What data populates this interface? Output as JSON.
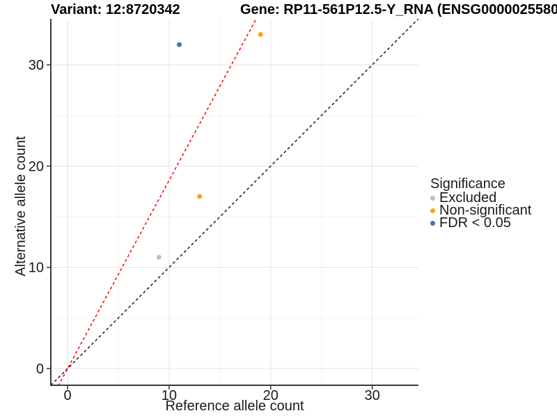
{
  "figure": {
    "variant_title": "Variant: 12:8720342",
    "gene_title": "Gene: RP11-561P12.5-Y_RNA (ENSG0000025580"
  },
  "legend": {
    "title": "Significance",
    "position": "right",
    "items": [
      {
        "label": "Excluded",
        "color": "#BEBEBE"
      },
      {
        "label": "Non-significant",
        "color": "#FCA01E"
      },
      {
        "label": "FDR < 0.05",
        "color": "#4477AA"
      }
    ]
  },
  "chart_data": {
    "type": "scatter",
    "title_left": "Variant: 12:8720342",
    "title_right": "Gene: RP11-561P12.5-Y_RNA (ENSG0000025580",
    "xlabel": "Reference allele count",
    "ylabel": "Alternative allele count",
    "xlim": [
      -1.65,
      34.55
    ],
    "ylim": [
      -1.65,
      34.55
    ],
    "x_major_ticks": [
      0,
      10,
      20,
      30
    ],
    "y_major_ticks": [
      0,
      10,
      20,
      30
    ],
    "x_minor_ticks": [
      5,
      15,
      25
    ],
    "y_minor_ticks": [
      5,
      15,
      25
    ],
    "grid": true,
    "legend_position": "right",
    "series": [
      {
        "name": "Excluded",
        "color": "#BEBEBE",
        "points": [
          {
            "x": 9,
            "y": 11
          }
        ]
      },
      {
        "name": "Non-significant",
        "color": "#FCA01E",
        "points": [
          {
            "x": 13,
            "y": 17
          },
          {
            "x": 19,
            "y": 33
          }
        ]
      },
      {
        "name": "FDR < 0.05",
        "color": "#4477AA",
        "points": [
          {
            "x": 11,
            "y": 32
          }
        ]
      }
    ],
    "reference_lines": [
      {
        "name": "identity-line",
        "slope": 1,
        "intercept": 0,
        "color": "#1A1A1A",
        "style": "dashed"
      },
      {
        "name": "expected-ratio-line",
        "slope": 1.86,
        "intercept": 0,
        "color": "#FF0000",
        "style": "dashed"
      }
    ]
  },
  "style": {
    "point_radius": 3.5,
    "grid_major_color": "#E3E3E3",
    "grid_minor_color": "#F1F1F1",
    "axis_line_color": "#3A3A3A",
    "tick_color": "#333333",
    "tick_label_color": "#1A1A1A"
  }
}
